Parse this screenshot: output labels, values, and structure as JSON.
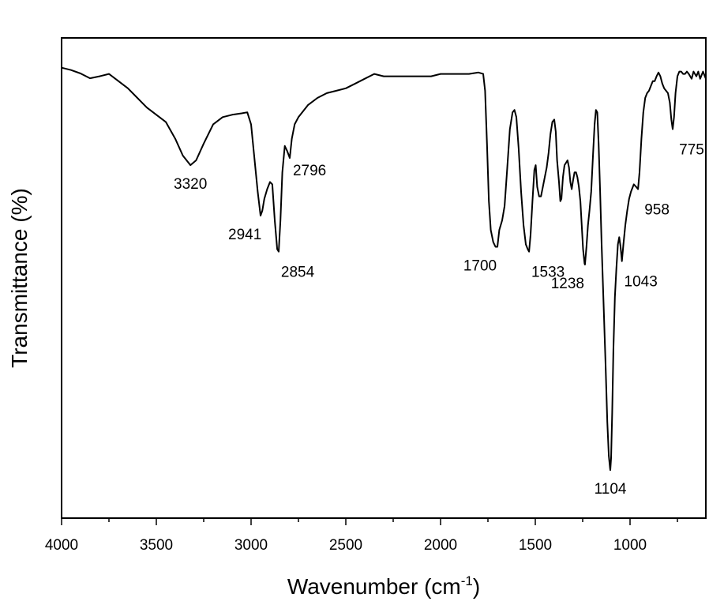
{
  "chart_data": {
    "type": "line",
    "title": "",
    "xlabel": "Wavenumber (cm",
    "xlabel_sup": "-1",
    "xlabel_tail": ")",
    "ylabel": "Transmittance (%)",
    "xlim": [
      4000,
      600
    ],
    "x_reversed": true,
    "ylim": [
      0,
      100
    ],
    "y_ticks_labeled": false,
    "grid": false,
    "legend": "none",
    "x_ticks": [
      4000,
      3500,
      3000,
      2500,
      2000,
      1500,
      1000
    ],
    "x_tick_labels": [
      "4000",
      "3500",
      "3000",
      "2500",
      "2000",
      "1500",
      "1000"
    ],
    "series": [
      {
        "color": "#000000",
        "points": [
          [
            4000,
            93.8
          ],
          [
            3950,
            93.3
          ],
          [
            3900,
            92.6
          ],
          [
            3850,
            91.6
          ],
          [
            3800,
            92.0
          ],
          [
            3750,
            92.5
          ],
          [
            3700,
            91.0
          ],
          [
            3650,
            89.5
          ],
          [
            3600,
            87.5
          ],
          [
            3550,
            85.5
          ],
          [
            3500,
            84.0
          ],
          [
            3450,
            82.5
          ],
          [
            3400,
            79.0
          ],
          [
            3360,
            75.5
          ],
          [
            3320,
            73.5
          ],
          [
            3290,
            74.5
          ],
          [
            3250,
            78.0
          ],
          [
            3200,
            82.0
          ],
          [
            3150,
            83.5
          ],
          [
            3100,
            84.0
          ],
          [
            3050,
            84.3
          ],
          [
            3020,
            84.5
          ],
          [
            3000,
            82.0
          ],
          [
            2985,
            76.0
          ],
          [
            2965,
            68.0
          ],
          [
            2950,
            63.0
          ],
          [
            2941,
            64.0
          ],
          [
            2930,
            66.5
          ],
          [
            2915,
            68.5
          ],
          [
            2900,
            70.0
          ],
          [
            2888,
            69.5
          ],
          [
            2875,
            62.0
          ],
          [
            2862,
            56.0
          ],
          [
            2854,
            55.5
          ],
          [
            2845,
            62.0
          ],
          [
            2835,
            72.0
          ],
          [
            2822,
            77.5
          ],
          [
            2810,
            76.5
          ],
          [
            2796,
            75.0
          ],
          [
            2785,
            79.0
          ],
          [
            2770,
            82.0
          ],
          [
            2750,
            83.5
          ],
          [
            2700,
            86.0
          ],
          [
            2650,
            87.5
          ],
          [
            2600,
            88.5
          ],
          [
            2550,
            89.0
          ],
          [
            2500,
            89.5
          ],
          [
            2450,
            90.5
          ],
          [
            2400,
            91.5
          ],
          [
            2350,
            92.5
          ],
          [
            2300,
            92.0
          ],
          [
            2250,
            92.0
          ],
          [
            2200,
            92.0
          ],
          [
            2150,
            92.0
          ],
          [
            2100,
            92.0
          ],
          [
            2050,
            92.0
          ],
          [
            2000,
            92.5
          ],
          [
            1950,
            92.5
          ],
          [
            1900,
            92.5
          ],
          [
            1850,
            92.5
          ],
          [
            1800,
            92.8
          ],
          [
            1775,
            92.5
          ],
          [
            1765,
            89.0
          ],
          [
            1755,
            78.0
          ],
          [
            1745,
            66.0
          ],
          [
            1735,
            60.0
          ],
          [
            1722,
            57.5
          ],
          [
            1710,
            56.5
          ],
          [
            1700,
            56.5
          ],
          [
            1690,
            60.0
          ],
          [
            1675,
            62.0
          ],
          [
            1662,
            65.0
          ],
          [
            1648,
            73.0
          ],
          [
            1634,
            81.0
          ],
          [
            1620,
            84.5
          ],
          [
            1610,
            85.0
          ],
          [
            1600,
            83.5
          ],
          [
            1588,
            77.0
          ],
          [
            1575,
            68.0
          ],
          [
            1562,
            61.0
          ],
          [
            1550,
            57.0
          ],
          [
            1540,
            56.0
          ],
          [
            1533,
            55.5
          ],
          [
            1525,
            59.0
          ],
          [
            1515,
            66.0
          ],
          [
            1505,
            72.5
          ],
          [
            1498,
            73.5
          ],
          [
            1490,
            69.0
          ],
          [
            1480,
            67.0
          ],
          [
            1470,
            67.0
          ],
          [
            1460,
            69.0
          ],
          [
            1450,
            71.0
          ],
          [
            1440,
            73.0
          ],
          [
            1430,
            76.0
          ],
          [
            1420,
            80.0
          ],
          [
            1410,
            82.5
          ],
          [
            1400,
            83.0
          ],
          [
            1392,
            80.5
          ],
          [
            1385,
            74.5
          ],
          [
            1375,
            70.0
          ],
          [
            1368,
            66.0
          ],
          [
            1362,
            66.5
          ],
          [
            1354,
            71.0
          ],
          [
            1346,
            73.5
          ],
          [
            1338,
            74.0
          ],
          [
            1330,
            74.5
          ],
          [
            1322,
            73.0
          ],
          [
            1315,
            70.0
          ],
          [
            1308,
            68.5
          ],
          [
            1300,
            70.5
          ],
          [
            1293,
            72.0
          ],
          [
            1285,
            72.0
          ],
          [
            1278,
            71.0
          ],
          [
            1270,
            69.0
          ],
          [
            1262,
            66.0
          ],
          [
            1255,
            61.0
          ],
          [
            1248,
            56.0
          ],
          [
            1240,
            53.0
          ],
          [
            1238,
            52.8
          ],
          [
            1230,
            56.5
          ],
          [
            1222,
            61.0
          ],
          [
            1214,
            64.0
          ],
          [
            1205,
            68.0
          ],
          [
            1195,
            76.0
          ],
          [
            1187,
            82.0
          ],
          [
            1180,
            85.0
          ],
          [
            1173,
            84.5
          ],
          [
            1166,
            78.0
          ],
          [
            1158,
            68.0
          ],
          [
            1150,
            57.0
          ],
          [
            1140,
            45.0
          ],
          [
            1130,
            33.0
          ],
          [
            1120,
            20.0
          ],
          [
            1112,
            13.0
          ],
          [
            1106,
            10.5
          ],
          [
            1104,
            10.0
          ],
          [
            1100,
            12.5
          ],
          [
            1094,
            22.0
          ],
          [
            1088,
            35.0
          ],
          [
            1080,
            46.0
          ],
          [
            1072,
            52.0
          ],
          [
            1064,
            57.0
          ],
          [
            1057,
            58.5
          ],
          [
            1050,
            56.5
          ],
          [
            1043,
            53.5
          ],
          [
            1035,
            57.0
          ],
          [
            1025,
            61.0
          ],
          [
            1015,
            64.0
          ],
          [
            1005,
            66.5
          ],
          [
            995,
            68.0
          ],
          [
            980,
            69.5
          ],
          [
            968,
            69.0
          ],
          [
            958,
            68.5
          ],
          [
            950,
            72.0
          ],
          [
            940,
            79.0
          ],
          [
            930,
            84.5
          ],
          [
            920,
            87.5
          ],
          [
            910,
            88.5
          ],
          [
            900,
            89.0
          ],
          [
            890,
            90.0
          ],
          [
            880,
            91.0
          ],
          [
            870,
            91.0
          ],
          [
            860,
            92.0
          ],
          [
            850,
            92.8
          ],
          [
            840,
            92.0
          ],
          [
            830,
            90.5
          ],
          [
            820,
            89.5
          ],
          [
            810,
            89.0
          ],
          [
            800,
            88.5
          ],
          [
            790,
            86.5
          ],
          [
            782,
            83.0
          ],
          [
            775,
            81.0
          ],
          [
            768,
            83.5
          ],
          [
            760,
            88.5
          ],
          [
            750,
            92.0
          ],
          [
            740,
            93.0
          ],
          [
            730,
            93.0
          ],
          [
            720,
            92.5
          ],
          [
            710,
            92.5
          ],
          [
            700,
            93.0
          ],
          [
            690,
            92.5
          ],
          [
            675,
            91.5
          ],
          [
            665,
            93.0
          ],
          [
            650,
            92.0
          ],
          [
            640,
            93.0
          ],
          [
            630,
            91.5
          ],
          [
            615,
            93.0
          ],
          [
            600,
            91.5
          ]
        ]
      }
    ],
    "annotations": [
      {
        "text": "3320",
        "x": 3320,
        "y": 73.5,
        "pos": "below"
      },
      {
        "text": "2941",
        "x": 2941,
        "y": 63.0,
        "pos": "below-left"
      },
      {
        "text": "2854",
        "x": 2854,
        "y": 55.5,
        "pos": "below-right"
      },
      {
        "text": "2796",
        "x": 2796,
        "y": 75.0,
        "pos": "right"
      },
      {
        "text": "1700",
        "x": 1700,
        "y": 56.5,
        "pos": "below-left"
      },
      {
        "text": "1533",
        "x": 1533,
        "y": 55.5,
        "pos": "below-right"
      },
      {
        "text": "1238",
        "x": 1238,
        "y": 52.8,
        "pos": "below-left"
      },
      {
        "text": "1104",
        "x": 1104,
        "y": 10.0,
        "pos": "below"
      },
      {
        "text": "1043",
        "x": 1043,
        "y": 53.5,
        "pos": "below-right"
      },
      {
        "text": "958",
        "x": 958,
        "y": 68.5,
        "pos": "below-right"
      },
      {
        "text": "775",
        "x": 775,
        "y": 81.0,
        "pos": "below-right"
      }
    ]
  }
}
